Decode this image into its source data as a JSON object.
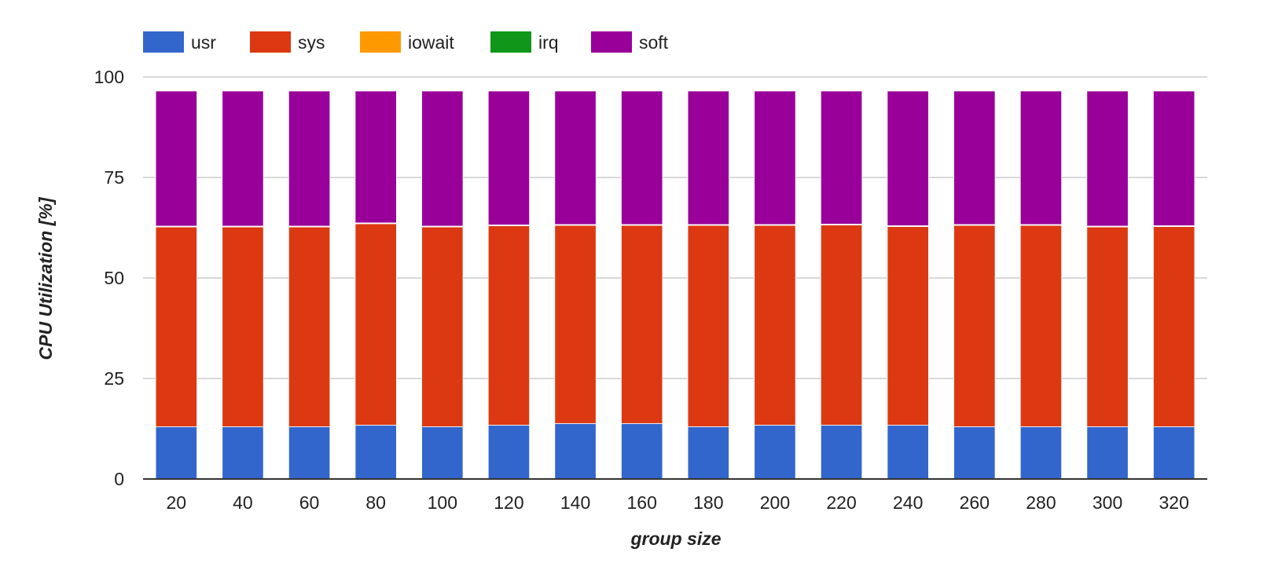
{
  "chart_data": {
    "type": "bar",
    "stacked": true,
    "xlabel": "group size",
    "ylabel": "CPU Utilization [%]",
    "categories": [
      "20",
      "40",
      "60",
      "80",
      "100",
      "120",
      "140",
      "160",
      "180",
      "200",
      "220",
      "240",
      "260",
      "280",
      "300",
      "320"
    ],
    "ylim": [
      0,
      100
    ],
    "yticks": [
      "0",
      "25",
      "50",
      "75",
      "100"
    ],
    "grid": true,
    "legend_position": "top-left",
    "series": [
      {
        "name": "usr",
        "color": "#3366cc",
        "values": [
          13.0,
          13.0,
          13.0,
          13.4,
          13.0,
          13.4,
          13.8,
          13.8,
          13.0,
          13.4,
          13.4,
          13.4,
          13.0,
          13.0,
          13.0,
          13.0
        ]
      },
      {
        "name": "sys",
        "color": "#dc3912",
        "values": [
          49.7,
          49.7,
          49.7,
          50.1,
          49.7,
          49.6,
          49.3,
          49.3,
          50.1,
          49.7,
          49.8,
          49.4,
          50.1,
          50.1,
          49.7,
          49.8
        ]
      },
      {
        "name": "iowait",
        "color": "#ff9900",
        "values": [
          0.1,
          0.1,
          0.1,
          0.1,
          0.1,
          0.1,
          0.1,
          0.1,
          0.1,
          0.1,
          0.1,
          0.1,
          0.1,
          0.1,
          0.1,
          0.1
        ]
      },
      {
        "name": "irq",
        "color": "#109618",
        "values": [
          0.1,
          0.1,
          0.1,
          0.1,
          0.1,
          0.1,
          0.1,
          0.1,
          0.1,
          0.1,
          0.1,
          0.1,
          0.1,
          0.1,
          0.1,
          0.1
        ]
      },
      {
        "name": "soft",
        "color": "#990099",
        "values": [
          33.6,
          33.6,
          33.6,
          32.8,
          33.6,
          33.3,
          33.2,
          33.2,
          33.2,
          33.2,
          33.1,
          33.5,
          33.2,
          33.2,
          33.6,
          33.5
        ]
      }
    ]
  }
}
